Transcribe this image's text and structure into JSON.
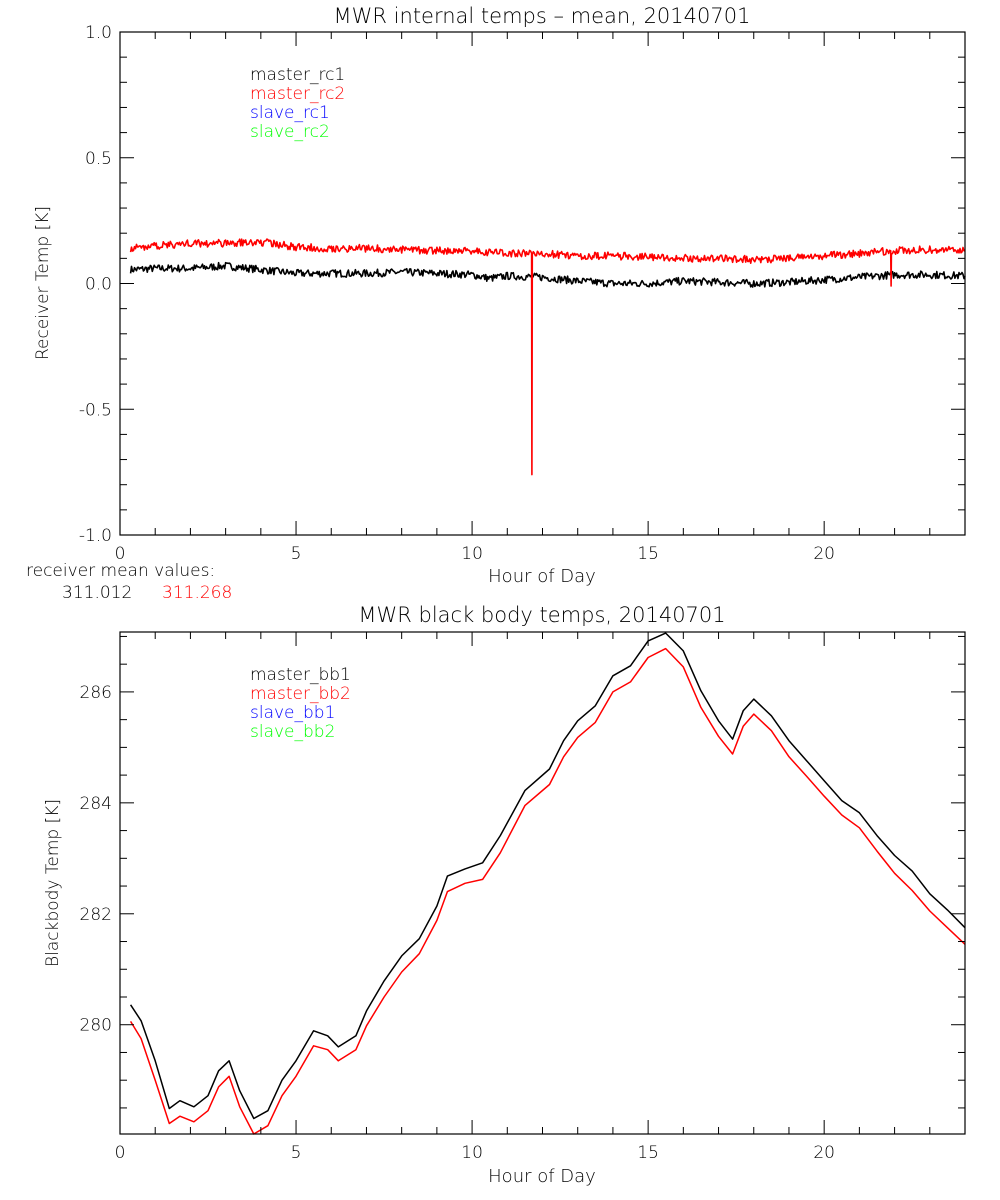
{
  "chart_data": [
    {
      "type": "line",
      "title": "MWR internal temps – mean, 20140701",
      "xlabel": "Hour of Day",
      "ylabel": "Receiver Temp [K]",
      "xlim": [
        0,
        24
      ],
      "ylim": [
        -1.0,
        1.0
      ],
      "xticks": [
        "0",
        "5",
        "10",
        "15",
        "20"
      ],
      "yticks": [
        "-1.0",
        "-0.5",
        "0.0",
        "0.5",
        "1.0"
      ],
      "grid": false,
      "legend_placement": "top-left",
      "legend": [
        {
          "name": "master_rc1",
          "color": "#000000"
        },
        {
          "name": "master_rc2",
          "color": "#ff0000"
        },
        {
          "name": "slave_rc1",
          "color": "#0000ff"
        },
        {
          "name": "slave_rc2",
          "color": "#00ff00"
        }
      ],
      "series": [
        {
          "name": "master_rc1",
          "color": "#000000",
          "x": [
            0.3,
            1,
            2,
            3,
            4,
            5,
            6,
            7,
            8,
            9,
            10,
            10.5,
            11,
            12,
            13,
            14,
            15,
            16,
            17,
            18,
            19,
            20,
            21,
            22,
            23,
            24
          ],
          "y": [
            0.055,
            0.06,
            0.06,
            0.07,
            0.055,
            0.04,
            0.04,
            0.04,
            0.045,
            0.04,
            0.035,
            0.02,
            0.03,
            0.025,
            0.01,
            0.0,
            0.0,
            0.01,
            0.005,
            0.0,
            0.005,
            0.015,
            0.025,
            0.035,
            0.035,
            0.03
          ]
        },
        {
          "name": "master_rc2",
          "color": "#ff0000",
          "x": [
            0.3,
            1,
            2,
            3,
            4,
            5,
            6,
            7,
            8,
            9,
            10,
            11,
            11.69,
            11.7,
            11.71,
            12,
            13,
            14,
            15,
            16,
            17,
            18,
            19,
            20,
            21,
            21.89,
            21.9,
            21.91,
            22,
            23,
            24
          ],
          "y": [
            0.14,
            0.15,
            0.16,
            0.16,
            0.165,
            0.145,
            0.14,
            0.14,
            0.135,
            0.13,
            0.13,
            0.12,
            0.12,
            -0.76,
            0.12,
            0.12,
            0.11,
            0.11,
            0.105,
            0.1,
            0.1,
            0.095,
            0.1,
            0.11,
            0.12,
            0.13,
            -0.01,
            0.13,
            0.13,
            0.135,
            0.13
          ]
        }
      ],
      "annotations": {
        "label": "receiver mean values:",
        "values": [
          {
            "text": "311.012",
            "color": "#000000"
          },
          {
            "text": "311.268",
            "color": "#ff0000"
          }
        ]
      }
    },
    {
      "type": "line",
      "title": "MWR black body temps, 20140701",
      "xlabel": "Hour of Day",
      "ylabel": "Blackbody Temp [K]",
      "xlim": [
        0,
        24
      ],
      "ylim": [
        278.03,
        287.08
      ],
      "xticks": [
        "0",
        "5",
        "10",
        "15",
        "20"
      ],
      "yticks": [
        "280",
        "282",
        "284",
        "286"
      ],
      "grid": false,
      "legend_placement": "top-left",
      "legend": [
        {
          "name": "master_bb1",
          "color": "#000000"
        },
        {
          "name": "master_bb2",
          "color": "#ff0000"
        },
        {
          "name": "slave_bb1",
          "color": "#0000ff"
        },
        {
          "name": "slave_bb2",
          "color": "#00ff00"
        }
      ],
      "series": [
        {
          "name": "master_bb1",
          "color": "#000000",
          "x": [
            0.3,
            0.6,
            1.0,
            1.4,
            1.7,
            2.1,
            2.5,
            2.8,
            3.1,
            3.4,
            3.8,
            4.2,
            4.6,
            5.0,
            5.5,
            5.9,
            6.2,
            6.7,
            7.0,
            7.5,
            8.0,
            8.5,
            9.0,
            9.3,
            9.8,
            10.3,
            10.8,
            11.5,
            12.2,
            12.6,
            13.0,
            13.5,
            14.0,
            14.5,
            15.0,
            15.5,
            16.0,
            16.5,
            17.0,
            17.4,
            17.7,
            18.0,
            18.5,
            19.0,
            19.5,
            20.0,
            20.5,
            21.0,
            21.5,
            22.0,
            22.5,
            23.0,
            23.5,
            24.0
          ],
          "y": [
            280.36,
            280.07,
            279.35,
            278.49,
            278.63,
            278.52,
            278.72,
            279.17,
            279.35,
            278.81,
            278.31,
            278.45,
            279.0,
            279.35,
            279.89,
            279.8,
            279.6,
            279.8,
            280.25,
            280.79,
            281.24,
            281.55,
            282.14,
            282.68,
            282.81,
            282.92,
            283.41,
            284.22,
            284.61,
            285.12,
            285.48,
            285.75,
            286.29,
            286.47,
            286.92,
            287.06,
            286.74,
            286.02,
            285.48,
            285.15,
            285.66,
            285.87,
            285.57,
            285.12,
            284.76,
            284.4,
            284.04,
            283.82,
            283.41,
            283.05,
            282.77,
            282.36,
            282.07,
            281.75
          ]
        },
        {
          "name": "master_bb2",
          "color": "#ff0000",
          "x": [
            0.3,
            0.6,
            1.0,
            1.4,
            1.7,
            2.1,
            2.5,
            2.8,
            3.1,
            3.4,
            3.8,
            4.2,
            4.6,
            5.0,
            5.5,
            5.9,
            6.2,
            6.7,
            7.0,
            7.5,
            8.0,
            8.5,
            9.0,
            9.3,
            9.8,
            10.3,
            10.8,
            11.5,
            12.2,
            12.6,
            13.0,
            13.5,
            14.0,
            14.5,
            15.0,
            15.5,
            16.0,
            16.5,
            17.0,
            17.4,
            17.7,
            18.0,
            18.5,
            19.0,
            19.5,
            20.0,
            20.5,
            21.0,
            21.5,
            22.0,
            22.5,
            23.0,
            23.5,
            24.0
          ],
          "y": [
            280.06,
            279.75,
            279.0,
            278.22,
            278.35,
            278.25,
            278.45,
            278.88,
            279.07,
            278.52,
            278.03,
            278.18,
            278.72,
            279.07,
            279.62,
            279.55,
            279.35,
            279.55,
            279.98,
            280.5,
            280.95,
            281.28,
            281.88,
            282.4,
            282.55,
            282.62,
            283.1,
            283.95,
            284.33,
            284.83,
            285.18,
            285.45,
            286.0,
            286.18,
            286.62,
            286.78,
            286.45,
            285.72,
            285.2,
            284.88,
            285.38,
            285.6,
            285.3,
            284.83,
            284.48,
            284.12,
            283.78,
            283.55,
            283.13,
            282.73,
            282.42,
            282.05,
            281.75,
            281.45
          ]
        }
      ]
    }
  ]
}
